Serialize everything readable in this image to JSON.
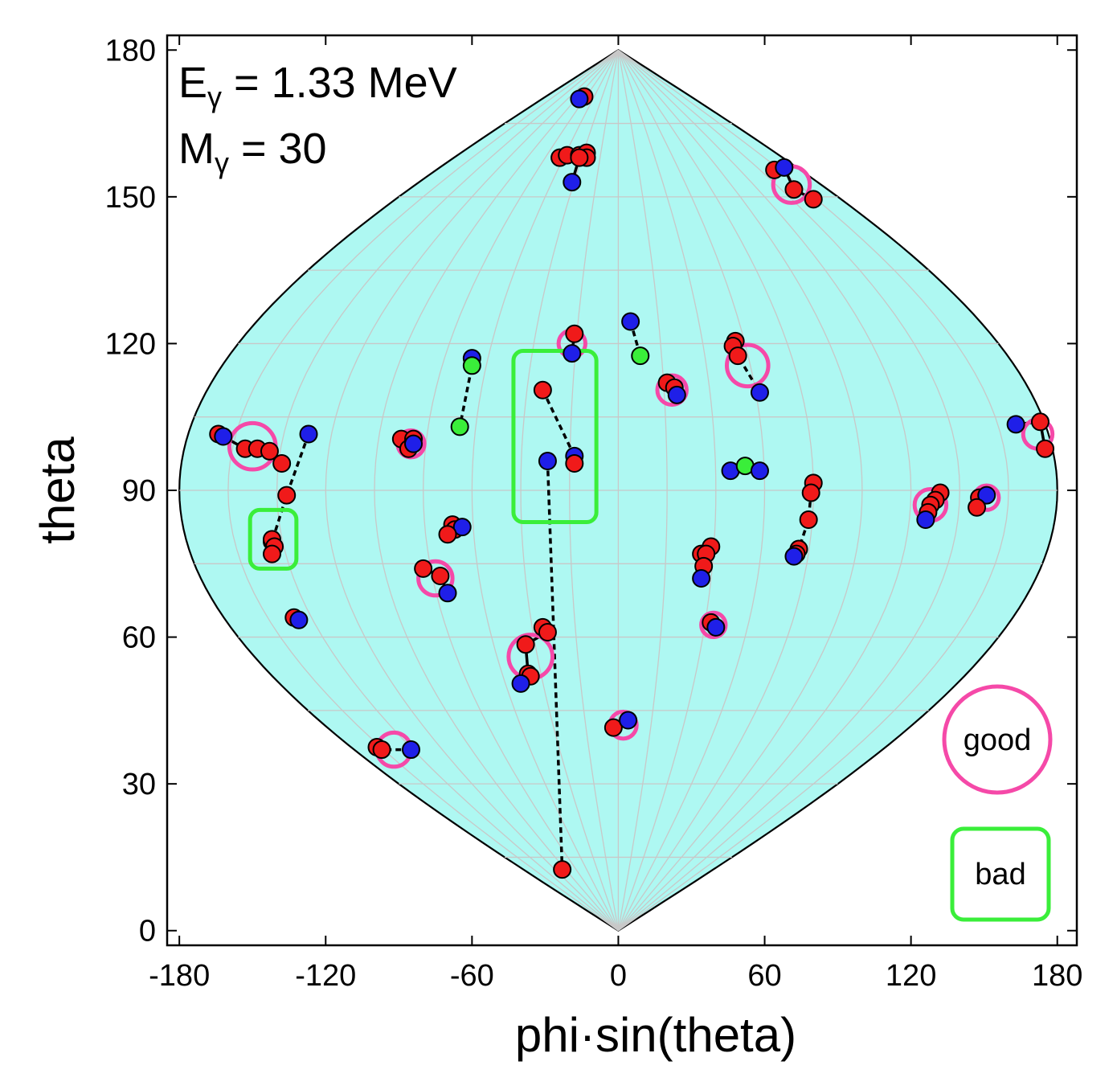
{
  "chart_data": {
    "type": "scatter",
    "title": "",
    "xlabel": "phi·sin(theta)",
    "ylabel": "theta",
    "xlim": [
      -185,
      188
    ],
    "ylim": [
      -3,
      183
    ],
    "x_ticks": [
      "-180",
      "-120",
      "-60",
      "0",
      "60",
      "120",
      "180"
    ],
    "y_ticks": [
      "0",
      "30",
      "60",
      "90",
      "120",
      "150",
      "180"
    ],
    "grid": "curved meridians every 20 deg of phi, parallels every 15 deg of theta",
    "annotation": {
      "line1": {
        "main": "E",
        "sub": "γ",
        "rest": " = 1.33 MeV"
      },
      "line2": {
        "main": "M",
        "sub": "γ",
        "rest": " = 30"
      }
    },
    "legend": {
      "placement": "bottom-right",
      "good": "good",
      "bad": "bad"
    },
    "colors": {
      "sphere_fill": "#aef8f2",
      "red_hit": "#f01a1a",
      "blue_hit": "#1f1fe8",
      "green_hit": "#3aee3a",
      "good_marker": "#f549a8",
      "bad_marker": "#3aee3a"
    },
    "good_circles": [
      {
        "x": 71,
        "y": 152.5,
        "r": 7.5
      },
      {
        "x": -19,
        "y": 120,
        "r": 5.5
      },
      {
        "x": 53,
        "y": 115.5,
        "r": 8.5
      },
      {
        "x": 22,
        "y": 110.5,
        "r": 6
      },
      {
        "x": -150,
        "y": 99,
        "r": 9.5
      },
      {
        "x": -85,
        "y": 99.5,
        "r": 5.5
      },
      {
        "x": 172,
        "y": 101.5,
        "r": 6
      },
      {
        "x": 128,
        "y": 87,
        "r": 6.5
      },
      {
        "x": 151,
        "y": 88.5,
        "r": 5
      },
      {
        "x": -75,
        "y": 72,
        "r": 7
      },
      {
        "x": -36,
        "y": 56,
        "r": 9
      },
      {
        "x": 39,
        "y": 62.5,
        "r": 5
      },
      {
        "x": 2,
        "y": 42,
        "r": 5.5
      },
      {
        "x": -92,
        "y": 37,
        "r": 7
      }
    ],
    "bad_boxes": [
      {
        "x0": -43,
        "x1": -9,
        "y0": 83.5,
        "y1": 118.5
      },
      {
        "x0": -151,
        "x1": -132,
        "y0": 74,
        "y1": 86
      }
    ],
    "tracks": [
      {
        "style": "solid",
        "points": [
          {
            "x": -14,
            "y": 170.5,
            "c": "red"
          },
          {
            "x": -16,
            "y": 170,
            "c": "blue"
          }
        ]
      },
      {
        "style": "solid",
        "points": [
          {
            "x": -24,
            "y": 158,
            "c": "red"
          },
          {
            "x": -21,
            "y": 158.5,
            "c": "red"
          },
          {
            "x": -16,
            "y": 158.5,
            "c": "red"
          },
          {
            "x": -13,
            "y": 159,
            "c": "red"
          },
          {
            "x": -13,
            "y": 158,
            "c": "red"
          },
          {
            "x": -16,
            "y": 158,
            "c": "red"
          },
          {
            "x": -19,
            "y": 153,
            "c": "blue"
          }
        ]
      },
      {
        "style": "solid",
        "points": [
          {
            "x": 64,
            "y": 155.5,
            "c": "red"
          },
          {
            "x": 68,
            "y": 156,
            "c": "blue"
          },
          {
            "x": 72,
            "y": 151.5,
            "c": "red"
          },
          {
            "x": 80,
            "y": 149.5,
            "c": "red"
          }
        ]
      },
      {
        "style": "solid",
        "points": [
          {
            "x": -18,
            "y": 122,
            "c": "red"
          },
          {
            "x": -19,
            "y": 118,
            "c": "blue"
          }
        ]
      },
      {
        "style": "dashed",
        "points": [
          {
            "x": 5,
            "y": 124.5,
            "c": "blue"
          },
          {
            "x": 9,
            "y": 117.5,
            "c": "green"
          }
        ]
      },
      {
        "style": "dashed",
        "points": [
          {
            "x": 48,
            "y": 120.5,
            "c": "red"
          },
          {
            "x": 47,
            "y": 119.5,
            "c": "red"
          },
          {
            "x": 49,
            "y": 117.5,
            "c": "red"
          },
          {
            "x": 58,
            "y": 110,
            "c": "blue"
          }
        ]
      },
      {
        "style": "solid",
        "points": [
          {
            "x": 20,
            "y": 112,
            "c": "red"
          },
          {
            "x": 23,
            "y": 111,
            "c": "red"
          },
          {
            "x": 24,
            "y": 109.5,
            "c": "blue"
          }
        ]
      },
      {
        "style": "dashed",
        "points": [
          {
            "x": -60,
            "y": 117,
            "c": "blue"
          },
          {
            "x": -60,
            "y": 115.5,
            "c": "green"
          },
          {
            "x": -65,
            "y": 103,
            "c": "green"
          }
        ]
      },
      {
        "style": "dashed",
        "points": [
          {
            "x": -31,
            "y": 110.5,
            "c": "red"
          },
          {
            "x": -18,
            "y": 97,
            "c": "blue"
          },
          {
            "x": -18,
            "y": 95.5,
            "c": "red"
          }
        ]
      },
      {
        "style": "dashed",
        "points": [
          {
            "x": -29,
            "y": 96,
            "c": "blue"
          },
          {
            "x": -23,
            "y": 12.5,
            "c": "red"
          }
        ]
      },
      {
        "style": "solid",
        "points": [
          {
            "x": -164,
            "y": 101.5,
            "c": "red"
          },
          {
            "x": -162,
            "y": 101,
            "c": "blue"
          },
          {
            "x": -153,
            "y": 98.5,
            "c": "red"
          },
          {
            "x": -148,
            "y": 98.5,
            "c": "red"
          },
          {
            "x": -143,
            "y": 98,
            "c": "red"
          },
          {
            "x": -138,
            "y": 95.5,
            "c": "red"
          }
        ]
      },
      {
        "style": "dashed",
        "points": [
          {
            "x": -127,
            "y": 101.5,
            "c": "blue"
          },
          {
            "x": -136,
            "y": 89,
            "c": "red"
          },
          {
            "x": -142,
            "y": 79.5,
            "c": "red"
          }
        ]
      },
      {
        "style": "solid",
        "points": [
          {
            "x": -142,
            "y": 80,
            "c": "red"
          },
          {
            "x": -141,
            "y": 78.5,
            "c": "red"
          },
          {
            "x": -142,
            "y": 77,
            "c": "red"
          }
        ]
      },
      {
        "style": "solid",
        "points": [
          {
            "x": -89,
            "y": 100.5,
            "c": "red"
          },
          {
            "x": -86,
            "y": 98.5,
            "c": "red"
          },
          {
            "x": -84,
            "y": 100.5,
            "c": "red"
          },
          {
            "x": -84,
            "y": 99.5,
            "c": "blue"
          }
        ]
      },
      {
        "style": "solid",
        "points": [
          {
            "x": 163,
            "y": 103.5,
            "c": "blue"
          },
          {
            "x": 173,
            "y": 104,
            "c": "red"
          },
          {
            "x": 175,
            "y": 98.5,
            "c": "red"
          }
        ]
      },
      {
        "style": "solid",
        "points": [
          {
            "x": 46,
            "y": 94,
            "c": "blue"
          },
          {
            "x": 52,
            "y": 95,
            "c": "green"
          },
          {
            "x": 58,
            "y": 94,
            "c": "blue"
          }
        ]
      },
      {
        "style": "dashed",
        "points": [
          {
            "x": 80,
            "y": 91.5,
            "c": "red"
          },
          {
            "x": 79,
            "y": 89.5,
            "c": "red"
          },
          {
            "x": 78,
            "y": 84,
            "c": "red"
          },
          {
            "x": 74,
            "y": 78,
            "c": "red"
          },
          {
            "x": 73,
            "y": 77,
            "c": "red"
          },
          {
            "x": 72,
            "y": 76.5,
            "c": "blue"
          }
        ]
      },
      {
        "style": "solid",
        "points": [
          {
            "x": 132,
            "y": 89.5,
            "c": "red"
          },
          {
            "x": 130,
            "y": 88,
            "c": "red"
          },
          {
            "x": 128,
            "y": 87,
            "c": "red"
          },
          {
            "x": 127,
            "y": 85.5,
            "c": "red"
          },
          {
            "x": 126,
            "y": 84,
            "c": "blue"
          }
        ]
      },
      {
        "style": "solid",
        "points": [
          {
            "x": 148,
            "y": 88.5,
            "c": "red"
          },
          {
            "x": 151,
            "y": 89,
            "c": "blue"
          },
          {
            "x": 147,
            "y": 86.5,
            "c": "red"
          }
        ]
      },
      {
        "style": "solid",
        "points": [
          {
            "x": -68,
            "y": 83,
            "c": "red"
          },
          {
            "x": -67,
            "y": 82,
            "c": "red"
          },
          {
            "x": -64,
            "y": 82.5,
            "c": "blue"
          },
          {
            "x": -70,
            "y": 81,
            "c": "red"
          }
        ]
      },
      {
        "style": "solid",
        "points": [
          {
            "x": -80,
            "y": 74,
            "c": "red"
          },
          {
            "x": -73,
            "y": 72.5,
            "c": "red"
          },
          {
            "x": -70,
            "y": 69,
            "c": "blue"
          }
        ]
      },
      {
        "style": "solid",
        "points": [
          {
            "x": 38,
            "y": 78.5,
            "c": "red"
          },
          {
            "x": 34,
            "y": 77,
            "c": "red"
          },
          {
            "x": 36,
            "y": 77,
            "c": "red"
          },
          {
            "x": 35,
            "y": 74.5,
            "c": "red"
          },
          {
            "x": 34,
            "y": 72,
            "c": "blue"
          }
        ]
      },
      {
        "style": "solid",
        "points": [
          {
            "x": -133,
            "y": 64,
            "c": "red"
          },
          {
            "x": -131,
            "y": 63.5,
            "c": "blue"
          }
        ]
      },
      {
        "style": "solid",
        "points": [
          {
            "x": 38,
            "y": 63,
            "c": "red"
          },
          {
            "x": 40,
            "y": 62,
            "c": "blue"
          }
        ]
      },
      {
        "style": "solid",
        "points": [
          {
            "x": -31,
            "y": 62,
            "c": "red"
          },
          {
            "x": -29,
            "y": 61,
            "c": "red"
          },
          {
            "x": -38,
            "y": 58.5,
            "c": "red"
          },
          {
            "x": -37,
            "y": 52.5,
            "c": "red"
          },
          {
            "x": -36,
            "y": 52,
            "c": "red"
          },
          {
            "x": -40,
            "y": 50.5,
            "c": "blue"
          }
        ]
      },
      {
        "style": "solid",
        "points": [
          {
            "x": -2,
            "y": 41.5,
            "c": "red"
          },
          {
            "x": 4,
            "y": 43,
            "c": "blue"
          }
        ]
      },
      {
        "style": "dashed",
        "points": [
          {
            "x": -99,
            "y": 37.5,
            "c": "red"
          },
          {
            "x": -97,
            "y": 37,
            "c": "red"
          },
          {
            "x": -85,
            "y": 37,
            "c": "blue"
          }
        ]
      }
    ]
  }
}
